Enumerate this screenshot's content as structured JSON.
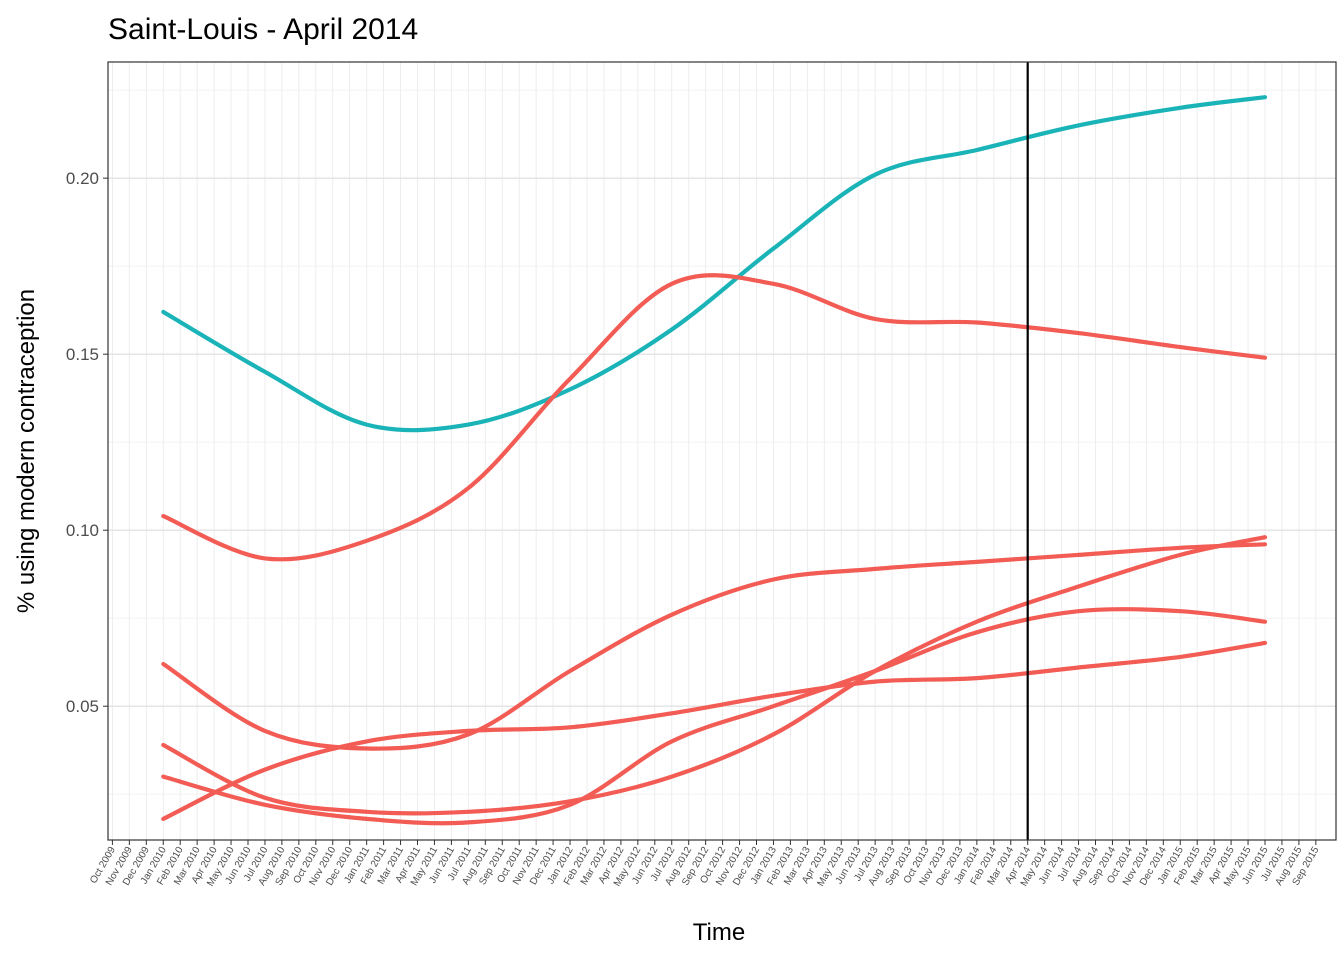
{
  "chart_data": {
    "type": "line",
    "title": "Saint-Louis - April 2014",
    "xlabel": "Time",
    "ylabel": "% using modern contraception",
    "ylim": [
      0.012,
      0.233
    ],
    "yticks": [
      "0.05",
      "0.10",
      "0.15",
      "0.20"
    ],
    "x_tick_labels": [
      "Oct 2009",
      "Nov 2009",
      "Dec 2009",
      "Jan 2010",
      "Feb 2010",
      "Mar 2010",
      "Apr 2010",
      "May 2010",
      "Jun 2010",
      "Jul 2010",
      "Aug 2010",
      "Sep 2010",
      "Oct 2010",
      "Nov 2010",
      "Dec 2010",
      "Jan 2011",
      "Feb 2011",
      "Mar 2011",
      "Apr 2011",
      "May 2011",
      "Jun 2011",
      "Jul 2011",
      "Aug 2011",
      "Sep 2011",
      "Oct 2011",
      "Nov 2011",
      "Dec 2011",
      "Jan 2012",
      "Feb 2012",
      "Mar 2012",
      "Apr 2012",
      "May 2012",
      "Jun 2012",
      "Jul 2012",
      "Aug 2012",
      "Sep 2012",
      "Oct 2012",
      "Nov 2012",
      "Dec 2012",
      "Jan 2013",
      "Feb 2013",
      "Mar 2013",
      "Apr 2013",
      "May 2013",
      "Jun 2013",
      "Jul 2013",
      "Aug 2013",
      "Sep 2013",
      "Oct 2013",
      "Nov 2013",
      "Dec 2013",
      "Jan 2014",
      "Feb 2014",
      "Mar 2014",
      "Apr 2014",
      "May 2014",
      "Jun 2014",
      "Jul 2014",
      "Aug 2014",
      "Sep 2014",
      "Oct 2014",
      "Nov 2014",
      "Dec 2014",
      "Jan 2015",
      "Feb 2015",
      "Mar 2015",
      "Apr 2015",
      "May 2015",
      "Jun 2015",
      "Jul 2015",
      "Aug 2015",
      "Sep 2015"
    ],
    "x": [
      "Jan 2010",
      "Jul 2010",
      "Jan 2011",
      "Jul 2011",
      "Jan 2012",
      "Jul 2012",
      "Jan 2013",
      "Jul 2013",
      "Jan 2014",
      "Jul 2014",
      "Jan 2015",
      "Jun 2015"
    ],
    "vline_at": "Apr 2014",
    "grid": true,
    "series": [
      {
        "color": "#1AB4B8",
        "values": [
          0.162,
          0.145,
          0.13,
          0.13,
          0.14,
          0.157,
          0.18,
          0.201,
          0.208,
          0.215,
          0.22,
          0.223
        ]
      },
      {
        "color": "#F25C54",
        "values": [
          0.104,
          0.092,
          0.097,
          0.112,
          0.143,
          0.17,
          0.17,
          0.16,
          0.159,
          0.156,
          0.152,
          0.149
        ]
      },
      {
        "color": "#F25C54",
        "values": [
          0.062,
          0.043,
          0.038,
          0.042,
          0.06,
          0.076,
          0.086,
          0.089,
          0.091,
          0.093,
          0.095,
          0.096
        ]
      },
      {
        "color": "#F25C54",
        "values": [
          0.039,
          0.024,
          0.02,
          0.02,
          0.023,
          0.03,
          0.042,
          0.06,
          0.074,
          0.084,
          0.093,
          0.098
        ]
      },
      {
        "color": "#F25C54",
        "values": [
          0.03,
          0.022,
          0.018,
          0.017,
          0.022,
          0.04,
          0.05,
          0.06,
          0.071,
          0.077,
          0.077,
          0.074
        ]
      },
      {
        "color": "#F25C54",
        "values": [
          0.018,
          0.032,
          0.04,
          0.043,
          0.044,
          0.048,
          0.053,
          0.057,
          0.058,
          0.061,
          0.064,
          0.068
        ]
      }
    ]
  }
}
